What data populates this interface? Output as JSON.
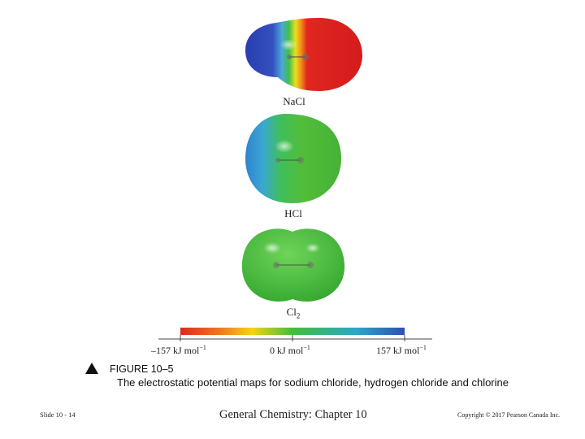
{
  "figure": {
    "molecules": [
      {
        "label": "NaCl"
      },
      {
        "label": "HCl"
      },
      {
        "label": "Cl",
        "subscript": "2"
      }
    ],
    "scale": {
      "ticks": [
        {
          "value": "–157 kJ mol",
          "exp": "−1"
        },
        {
          "value": "0 kJ mol",
          "exp": "−1"
        },
        {
          "value": "157 kJ mol",
          "exp": "−1"
        }
      ],
      "colors": [
        "#e0261f",
        "#f07a1a",
        "#f5d21a",
        "#3fbf3a",
        "#2aa8c8",
        "#2f4fb5"
      ]
    },
    "caption_figure": "FIGURE 10–5",
    "caption_text": "The electrostatic potential maps for sodium chloride, hydrogen chloride and chlorine"
  },
  "footer": {
    "slide": "Slide 10 - 14",
    "chapter": "General Chemistry: Chapter 10",
    "copyright": "Copyright © 2017 Pearson Canada Inc."
  }
}
